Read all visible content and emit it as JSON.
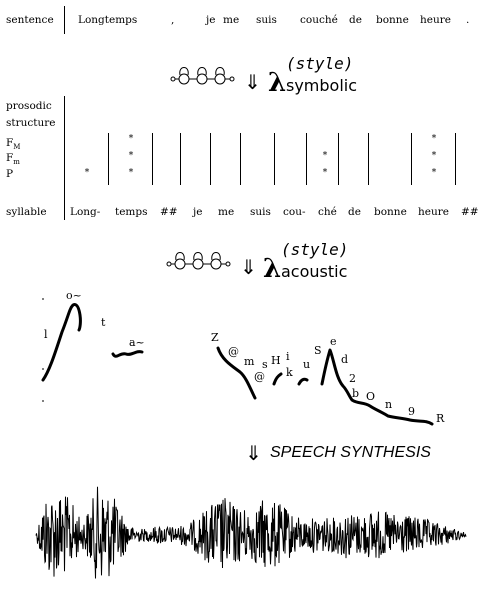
{
  "sentence": {
    "label": "sentence",
    "words": [
      "Longtemps",
      ",",
      "je",
      "me",
      "suis",
      "couché",
      "de",
      "bonne",
      "heure",
      "."
    ]
  },
  "symbolic": {
    "lambda": "λ",
    "sup": "(style)",
    "sub": "symbolic",
    "arrow": "⇓"
  },
  "prosodic": {
    "labels": [
      "prosodic",
      "structure",
      "F",
      "M",
      "F",
      "m",
      "P"
    ],
    "star": "*"
  },
  "syllable": {
    "label": "syllable",
    "units": [
      "Long-",
      "temps",
      "##",
      "je",
      "me",
      "suis",
      "cou-",
      "ché",
      "de",
      "bonne",
      "heure",
      "##"
    ]
  },
  "acoustic": {
    "lambda": "λ",
    "sup": "(style)",
    "sub": "acoustic",
    "arrow": "⇓"
  },
  "phonemes": [
    "l",
    "o~",
    "t",
    "a~",
    "Z",
    "@",
    "m",
    "@",
    "s",
    "H",
    "i",
    "k",
    "u",
    "S",
    "e",
    "d",
    "2",
    "b",
    "O",
    "n",
    "9",
    "R"
  ],
  "synthesis": {
    "arrow": "⇓",
    "label": "SPEECH SYNTHESIS"
  }
}
